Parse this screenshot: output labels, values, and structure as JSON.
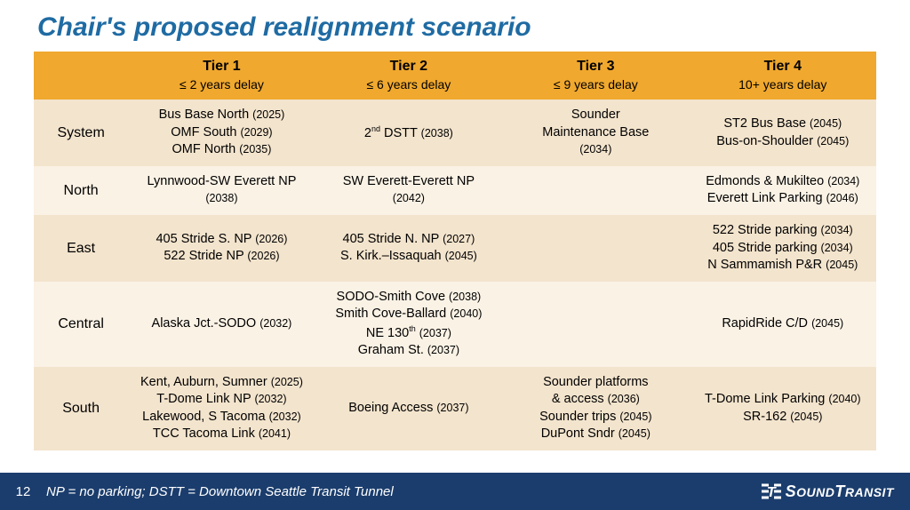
{
  "title": "Chair's proposed realignment scenario",
  "colors": {
    "title": "#1f6ba3",
    "header_bg": "#f0a82e",
    "band_a": "#f3e4cd",
    "band_b": "#faf2e5",
    "footer_bg": "#1b3d6d",
    "footer_text": "#ffffff"
  },
  "columns": [
    {
      "name": "Tier 1",
      "sub": "≤ 2 years delay"
    },
    {
      "name": "Tier 2",
      "sub": "≤ 6 years delay"
    },
    {
      "name": "Tier 3",
      "sub": "≤ 9 years delay"
    },
    {
      "name": "Tier 4",
      "sub": "10+ years delay"
    }
  ],
  "rows": [
    {
      "label": "System",
      "cells": [
        "Bus Base North <span class='yr'>(2025)</span><br>OMF South <span class='yr'>(2029)</span><br>OMF North <span class='yr'>(2035)</span>",
        "2<span class='sup'>nd</span> DSTT <span class='yr'>(2038)</span>",
        "Sounder<br>Maintenance Base<br><span class='yr'>(2034)</span>",
        "ST2 Bus Base <span class='yr'>(2045)</span><br>Bus-on-Shoulder <span class='yr'>(2045)</span>"
      ]
    },
    {
      "label": "North",
      "cells": [
        "Lynnwood-SW Everett NP<br><span class='yr'>(2038)</span>",
        "SW Everett-Everett NP<br><span class='yr'>(2042)</span>",
        "",
        "Edmonds & Mukilteo <span class='yr'>(2034)</span><br>Everett Link Parking <span class='yr'>(2046)</span>"
      ]
    },
    {
      "label": "East",
      "cells": [
        "405 Stride S. NP <span class='yr'>(2026)</span><br>522 Stride NP <span class='yr'>(2026)</span>",
        "405 Stride N. NP <span class='yr'>(2027)</span><br>S. Kirk.–Issaquah <span class='yr'>(2045)</span>",
        "",
        "522 Stride parking <span class='yr'>(2034)</span><br>405 Stride parking <span class='yr'>(2034)</span><br>N Sammamish P&R <span class='yr'>(2045)</span>"
      ]
    },
    {
      "label": "Central",
      "cells": [
        "Alaska Jct.-SODO <span class='yr'>(2032)</span>",
        "SODO-Smith Cove <span class='yr'>(2038)</span><br>Smith Cove-Ballard <span class='yr'>(2040)</span><br>NE 130<span class='sup'>th</span> <span class='yr'>(2037)</span><br>Graham St. <span class='yr'>(2037)</span>",
        "",
        "RapidRide C/D <span class='yr'>(2045)</span>"
      ]
    },
    {
      "label": "South",
      "cells": [
        "Kent, Auburn, Sumner <span class='yr'>(2025)</span><br>T-Dome Link NP <span class='yr'>(2032)</span><br>Lakewood, S Tacoma <span class='yr'>(2032)</span><br>TCC Tacoma Link <span class='yr'>(2041)</span>",
        "Boeing Access <span class='yr'>(2037)</span>",
        "Sounder platforms<br>& access <span class='yr'>(2036)</span><br>Sounder trips <span class='yr'>(2045)</span><br>DuPont Sndr <span class='yr'>(2045)</span>",
        "T-Dome Link Parking <span class='yr'>(2040)</span><br>SR-162 <span class='yr'>(2045)</span>"
      ]
    }
  ],
  "footer": {
    "page": "12",
    "legend": "NP = no parking; DSTT = Downtown Seattle Transit Tunnel",
    "brand_prefix": "S",
    "brand_rest": "OUND",
    "brand_prefix2": "T",
    "brand_rest2": "RANSIT"
  }
}
